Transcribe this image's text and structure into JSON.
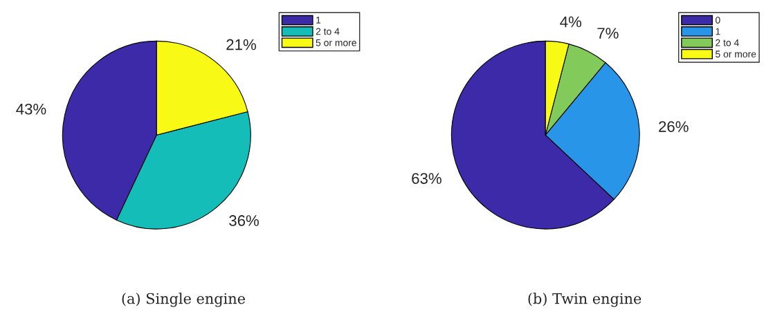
{
  "chart_data": [
    {
      "type": "pie",
      "title": "(a) Single engine",
      "categories": [
        "1",
        "2 to 4",
        "5 or more"
      ],
      "values": [
        43,
        36,
        21
      ],
      "value_labels": [
        "43%",
        "36%",
        "21%"
      ],
      "colors": [
        "#3c2aa8",
        "#14bdb8",
        "#f8f914"
      ],
      "legend": "top right"
    },
    {
      "type": "pie",
      "title": "(b) Twin engine",
      "categories": [
        "0",
        "1",
        "2 to 4",
        "5 or more"
      ],
      "values": [
        63,
        26,
        7,
        4
      ],
      "value_labels": [
        "63%",
        "26%",
        "7%",
        "4%"
      ],
      "colors": [
        "#3c2aa8",
        "#2895e8",
        "#82cb5a",
        "#f8f914"
      ],
      "legend": "top right"
    }
  ]
}
